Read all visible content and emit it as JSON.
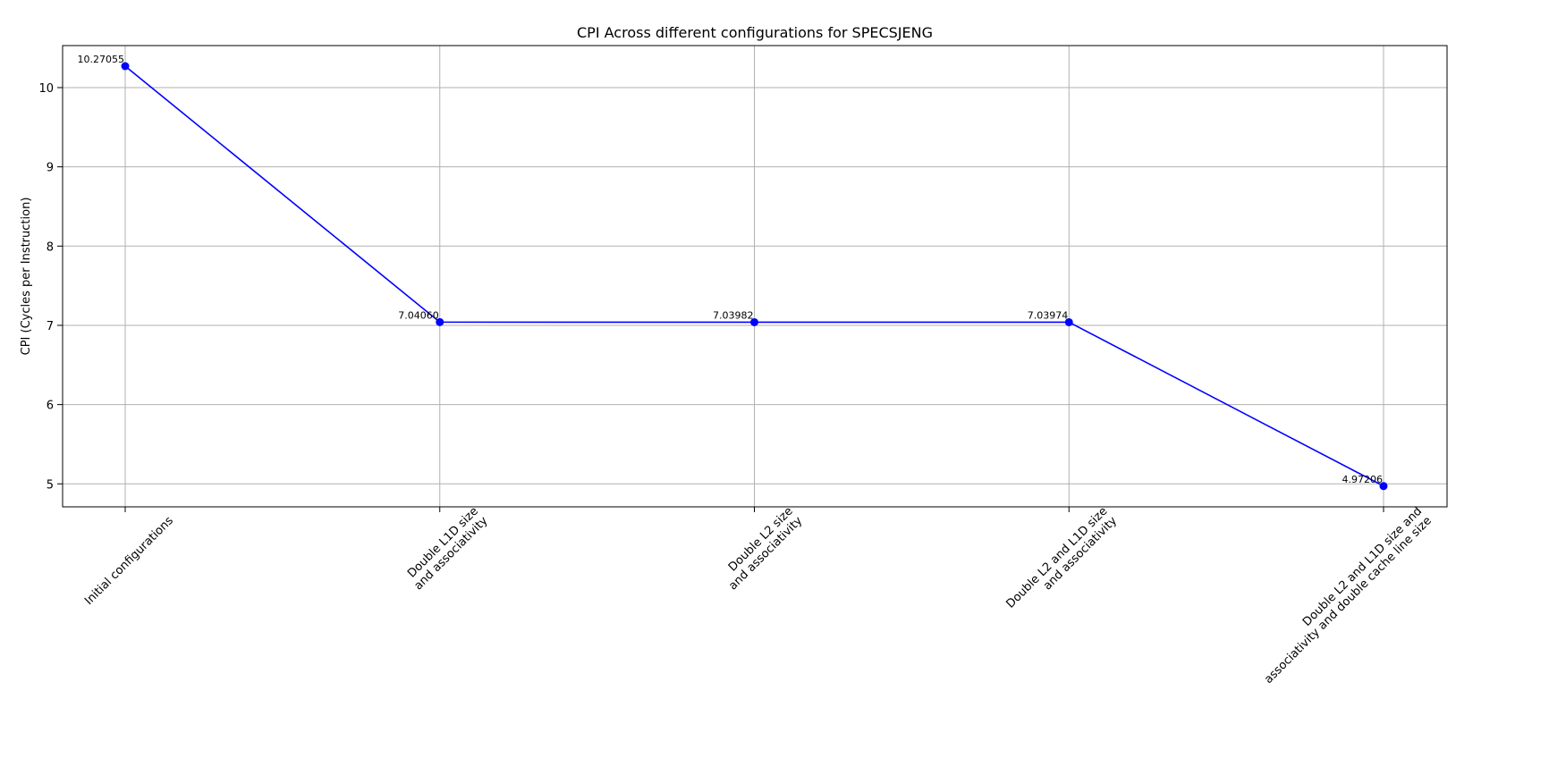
{
  "chart_data": {
    "type": "line",
    "title": "CPI Across different configurations for SPECSJENG",
    "xlabel": "",
    "ylabel": "CPI (Cycles per Instruction)",
    "categories": [
      [
        "Initial configurations"
      ],
      [
        "Double L1D size",
        "and associativity"
      ],
      [
        "Double L2 size",
        "and associativity"
      ],
      [
        "Double L2 and L1D size",
        "and associativity"
      ],
      [
        "Double L2 and L1D size and",
        "associativity and double cache line size"
      ]
    ],
    "series": [
      {
        "values": [
          10.27055,
          7.0406,
          7.03982,
          7.03974,
          4.97206
        ],
        "color": "#0000ff",
        "marker": "circle"
      }
    ],
    "data_labels": [
      "10.27055",
      "7.04060",
      "7.03982",
      "7.03974",
      "4.97206"
    ],
    "y_ticks": [
      5,
      6,
      7,
      8,
      9,
      10
    ],
    "ylim": [
      4.71,
      10.53
    ],
    "grid": true,
    "legend": false
  }
}
